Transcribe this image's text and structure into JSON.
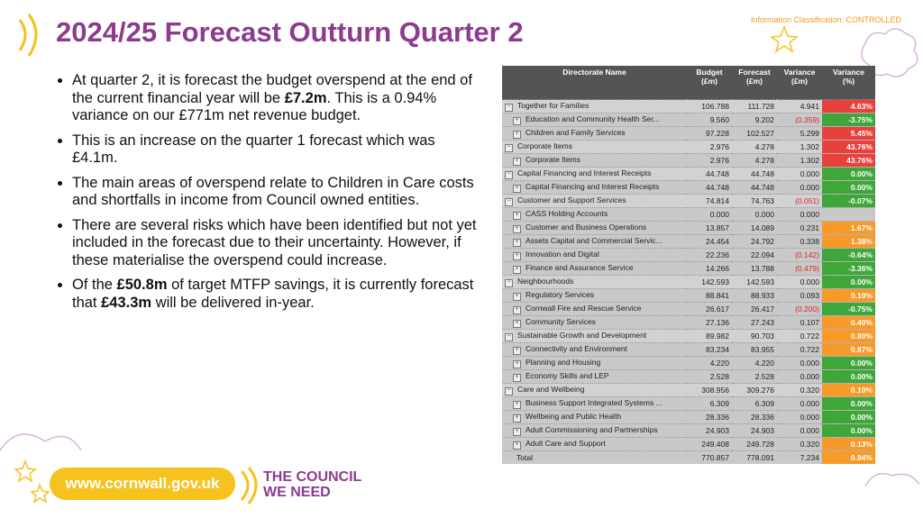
{
  "header": {
    "title": "2024/25 Forecast Outturn Quarter 2",
    "classification": "Information Classification: CONTROLLED"
  },
  "bullets": [
    [
      {
        "text": "At quarter 2, it is forecast the budget overspend at the end of the current financial year will be "
      },
      {
        "text": "£7.2m",
        "bold": true
      },
      {
        "text": ". This is a 0.94% variance on our £771m net revenue budget."
      }
    ],
    [
      {
        "text": "This is an increase on the quarter 1 forecast which was £4.1m."
      }
    ],
    [
      {
        "text": "The main areas of overspend relate to Children in Care costs and shortfalls in income from Council owned entities."
      }
    ],
    [
      {
        "text": "There are several risks which have been identified but not yet included in the forecast due to their uncertainty. However, if these materialise the overspend could increase."
      }
    ],
    [
      {
        "text": "Of the "
      },
      {
        "text": "£50.8m",
        "bold": true
      },
      {
        "text": " of target MTFP savings, it is currently forecast that "
      },
      {
        "text": "£43.3m",
        "bold": true
      },
      {
        "text": " will be delivered in-year."
      }
    ]
  ],
  "table": {
    "headers": [
      "Directorate Name",
      "Budget\n(£m)",
      "Forecast\n(£m)",
      "Variance\n(£m)",
      "Variance\n(%)"
    ],
    "status_colors": {
      "red": "#e8413c",
      "green": "#3fa63a",
      "amber": "#f79a2a"
    },
    "rows": [
      {
        "cells": [
          "Together for Families",
          "106.788",
          "111.728",
          "4.941",
          "4.63%"
        ],
        "group": true,
        "status": "red"
      },
      {
        "cells": [
          "Education and Community Health Ser...",
          "9.560",
          "9.202",
          "(0.359)",
          "-3.75%"
        ],
        "status": "green"
      },
      {
        "cells": [
          "Children and Family Services",
          "97.228",
          "102.527",
          "5.299",
          "5.45%"
        ],
        "status": "red"
      },
      {
        "cells": [
          "Corporate Items",
          "2.976",
          "4.278",
          "1.302",
          "43.76%"
        ],
        "group": true,
        "status": "red"
      },
      {
        "cells": [
          "Corporate Items",
          "2.976",
          "4.278",
          "1.302",
          "43.76%"
        ],
        "status": "red"
      },
      {
        "cells": [
          "Capital Financing and Interest Receipts",
          "44.748",
          "44.748",
          "0.000",
          "0.00%"
        ],
        "group": true,
        "status": "green"
      },
      {
        "cells": [
          "Capital Financing and Interest Receipts",
          "44.748",
          "44.748",
          "0.000",
          "0.00%"
        ],
        "status": "green"
      },
      {
        "cells": [
          "Customer and Support Services",
          "74.814",
          "74.763",
          "(0.051)",
          "-0.07%"
        ],
        "group": true,
        "status": "green"
      },
      {
        "cells": [
          "CASS Holding Accounts",
          "0.000",
          "0.000",
          "0.000"
        ]
      },
      {
        "cells": [
          "Customer and Business Operations",
          "13.857",
          "14.089",
          "0.231",
          "1.67%"
        ],
        "status": "amber"
      },
      {
        "cells": [
          "Assets Capital and Commercial Servic...",
          "24.454",
          "24.792",
          "0.338",
          "1.38%"
        ],
        "status": "amber"
      },
      {
        "cells": [
          "Innovation and Digital",
          "22.236",
          "22.094",
          "(0.142)",
          "-0.64%"
        ],
        "status": "green"
      },
      {
        "cells": [
          "Finance and Assurance Service",
          "14.266",
          "13.788",
          "(0.479)",
          "-3.36%"
        ],
        "status": "green"
      },
      {
        "cells": [
          "Neighbourhoods",
          "142.593",
          "142.593",
          "0.000",
          "0.00%"
        ],
        "group": true,
        "status": "green"
      },
      {
        "cells": [
          "Regulatory Services",
          "88.841",
          "88.933",
          "0.093",
          "0.10%"
        ],
        "status": "amber"
      },
      {
        "cells": [
          "Cornwall Fire and Rescue Service",
          "26.617",
          "26.417",
          "(0.200)",
          "-0.75%"
        ],
        "status": "green"
      },
      {
        "cells": [
          "Community Services",
          "27.136",
          "27.243",
          "0.107",
          "0.40%"
        ],
        "status": "amber"
      },
      {
        "cells": [
          "Sustainable Growth and Development",
          "89.982",
          "90.703",
          "0.722",
          "0.80%"
        ],
        "group": true,
        "status": "amber"
      },
      {
        "cells": [
          "Connectivity and Environment",
          "83.234",
          "83.955",
          "0.722",
          "0.87%"
        ],
        "status": "amber"
      },
      {
        "cells": [
          "Planning and Housing",
          "4.220",
          "4.220",
          "0.000",
          "0.00%"
        ],
        "status": "green"
      },
      {
        "cells": [
          "Economy Skills and LEP",
          "2.528",
          "2.528",
          "0.000",
          "0.00%"
        ],
        "status": "green"
      },
      {
        "cells": [
          "Care and Wellbeing",
          "308.956",
          "309.276",
          "0.320",
          "0.10%"
        ],
        "group": true,
        "status": "amber"
      },
      {
        "cells": [
          "Business Support Integrated Systems ...",
          "6.309",
          "6.309",
          "0.000",
          "0.00%"
        ],
        "status": "green"
      },
      {
        "cells": [
          "Wellbeing and Public Health",
          "28.336",
          "28.336",
          "0.000",
          "0.00%"
        ],
        "status": "green"
      },
      {
        "cells": [
          "Adult Commissioning and Partnerships",
          "24.903",
          "24.903",
          "0.000",
          "0.00%"
        ],
        "status": "green"
      },
      {
        "cells": [
          "Adult Care and Support",
          "249.408",
          "249.728",
          "0.320",
          "0.13%"
        ],
        "status": "amber"
      }
    ],
    "total": {
      "cells": [
        "Total",
        "770.857",
        "778.091",
        "7.234",
        "0.94%"
      ],
      "status": "amber"
    }
  },
  "footer": {
    "website": "www.cornwall.gov.uk",
    "slogan": "THE COUNCIL\nWE NEED"
  }
}
